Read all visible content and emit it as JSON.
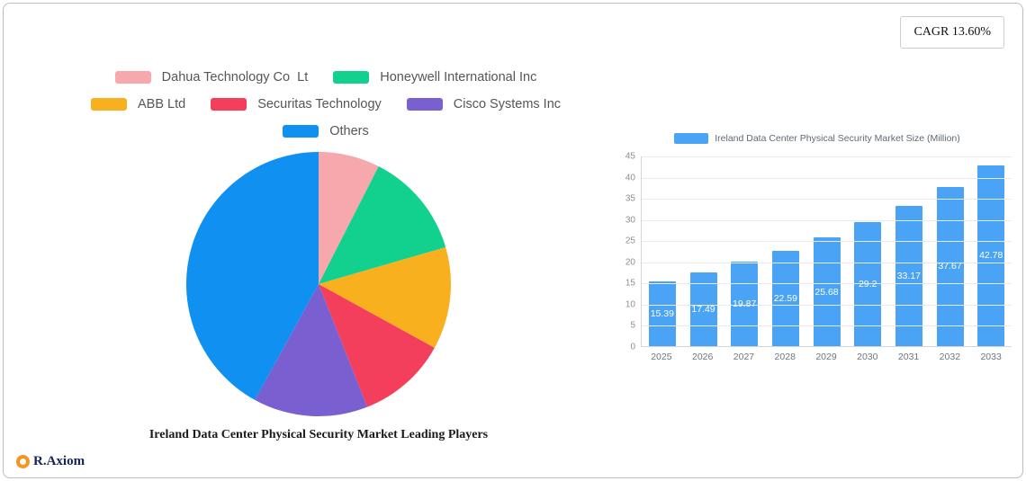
{
  "cagr_badge": "CAGR 13.60%",
  "logo_text": "R.Axiom",
  "chart_data": [
    {
      "type": "pie",
      "title": "Ireland Data Center Physical Security Market Leading Players",
      "labels": [
        "Dahua Technology Co  Lt",
        "Honeywell International Inc",
        "ABB Ltd",
        "Securitas Technology",
        "Cisco Systems Inc",
        "Others"
      ],
      "values": [
        7.5,
        13,
        12.5,
        11,
        14,
        42
      ],
      "colors": [
        "#f7a8ac",
        "#12d18e",
        "#f9b01e",
        "#f43f5c",
        "#7a5fd0",
        "#1090f0"
      ],
      "legend_position": "top",
      "start_angle": "top",
      "direction": "clockwise"
    },
    {
      "type": "bar",
      "title": "Ireland Data Center Physical Security Market Size (Million)",
      "categories": [
        "2025",
        "2026",
        "2027",
        "2028",
        "2029",
        "2030",
        "2031",
        "2032",
        "2033"
      ],
      "values": [
        15.39,
        17.49,
        19.87,
        22.59,
        25.68,
        29.2,
        33.17,
        37.67,
        42.78
      ],
      "value_labels": [
        "15.39",
        "17.49",
        "19.87",
        "22.59",
        "25.68",
        "29.2",
        "33.17",
        "37.67",
        "42.78"
      ],
      "bar_color": "#4aa3f5",
      "ylim": [
        0,
        45
      ],
      "yticks": [
        0,
        5,
        10,
        15,
        20,
        25,
        30,
        35,
        40,
        45
      ],
      "grid": true,
      "legend_position": "top"
    }
  ]
}
